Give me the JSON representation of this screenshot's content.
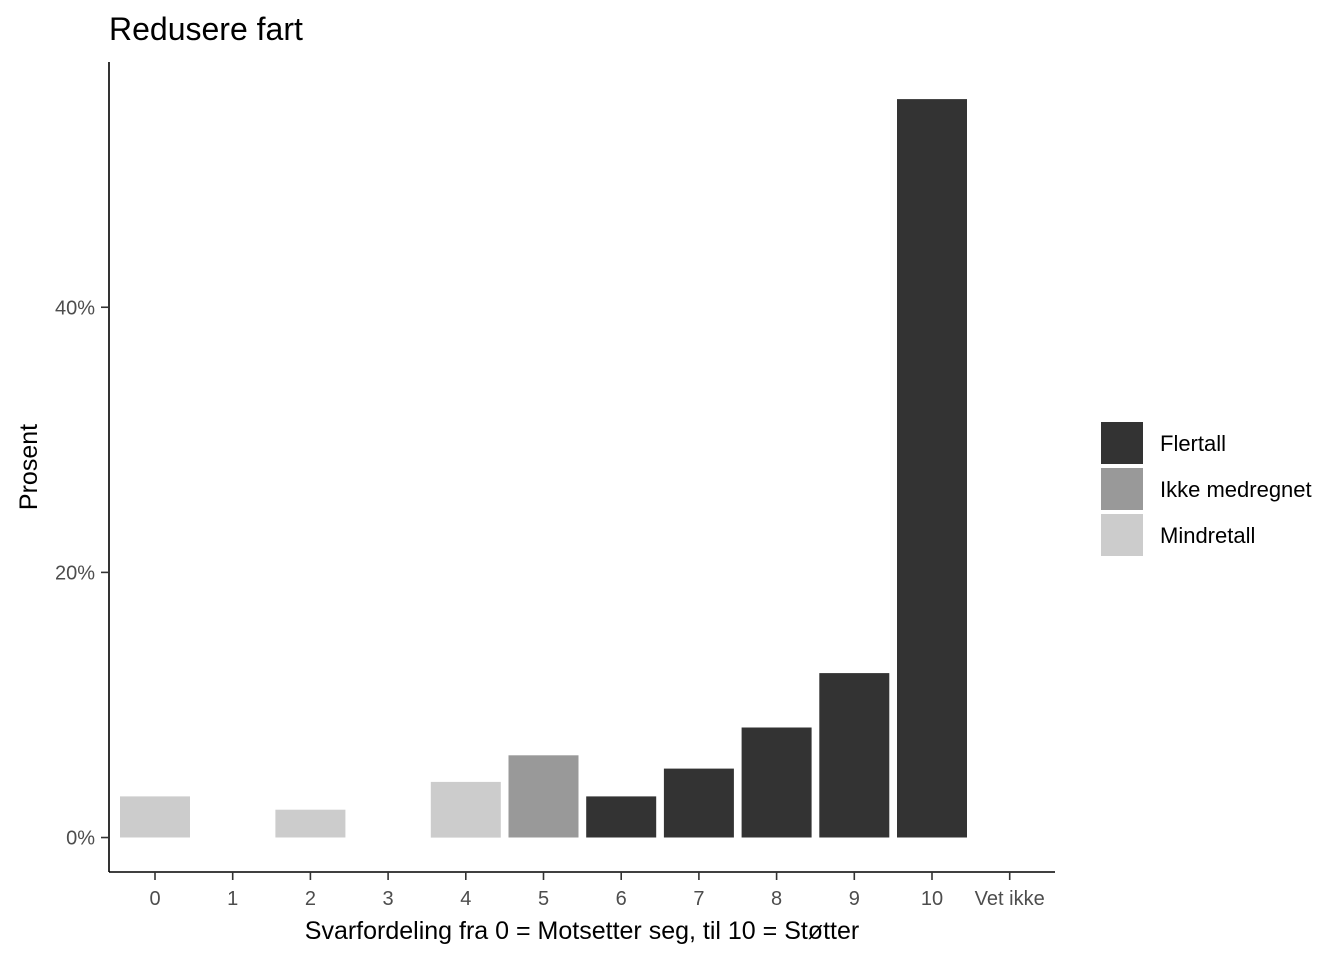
{
  "chart_data": {
    "type": "bar",
    "title": "Redusere fart",
    "xlabel": "Svarfordeling fra 0 = Motsetter seg, til 10 = Støtter",
    "ylabel": "Prosent",
    "categories": [
      "0",
      "1",
      "2",
      "3",
      "4",
      "5",
      "6",
      "7",
      "8",
      "9",
      "10",
      "Vet ikke"
    ],
    "values": [
      3.1,
      0,
      2.1,
      0,
      4.2,
      6.2,
      3.1,
      5.2,
      8.3,
      12.4,
      55.7,
      0
    ],
    "groups": [
      "Mindretall",
      "Mindretall",
      "Mindretall",
      "Mindretall",
      "Mindretall",
      "Ikke medregnet",
      "Flertall",
      "Flertall",
      "Flertall",
      "Flertall",
      "Flertall",
      "Ikke medregnet"
    ],
    "y_ticks": [
      {
        "value": 0,
        "label": "0%"
      },
      {
        "value": 20,
        "label": "20%"
      },
      {
        "value": 40,
        "label": "40%"
      }
    ],
    "ylim": [
      -2.6,
      58.5
    ],
    "grid": false,
    "legend": {
      "position": "right",
      "entries": [
        {
          "name": "Flertall",
          "color": "#333333"
        },
        {
          "name": "Ikke medregnet",
          "color": "#999999"
        },
        {
          "name": "Mindretall",
          "color": "#cccccc"
        }
      ]
    }
  }
}
